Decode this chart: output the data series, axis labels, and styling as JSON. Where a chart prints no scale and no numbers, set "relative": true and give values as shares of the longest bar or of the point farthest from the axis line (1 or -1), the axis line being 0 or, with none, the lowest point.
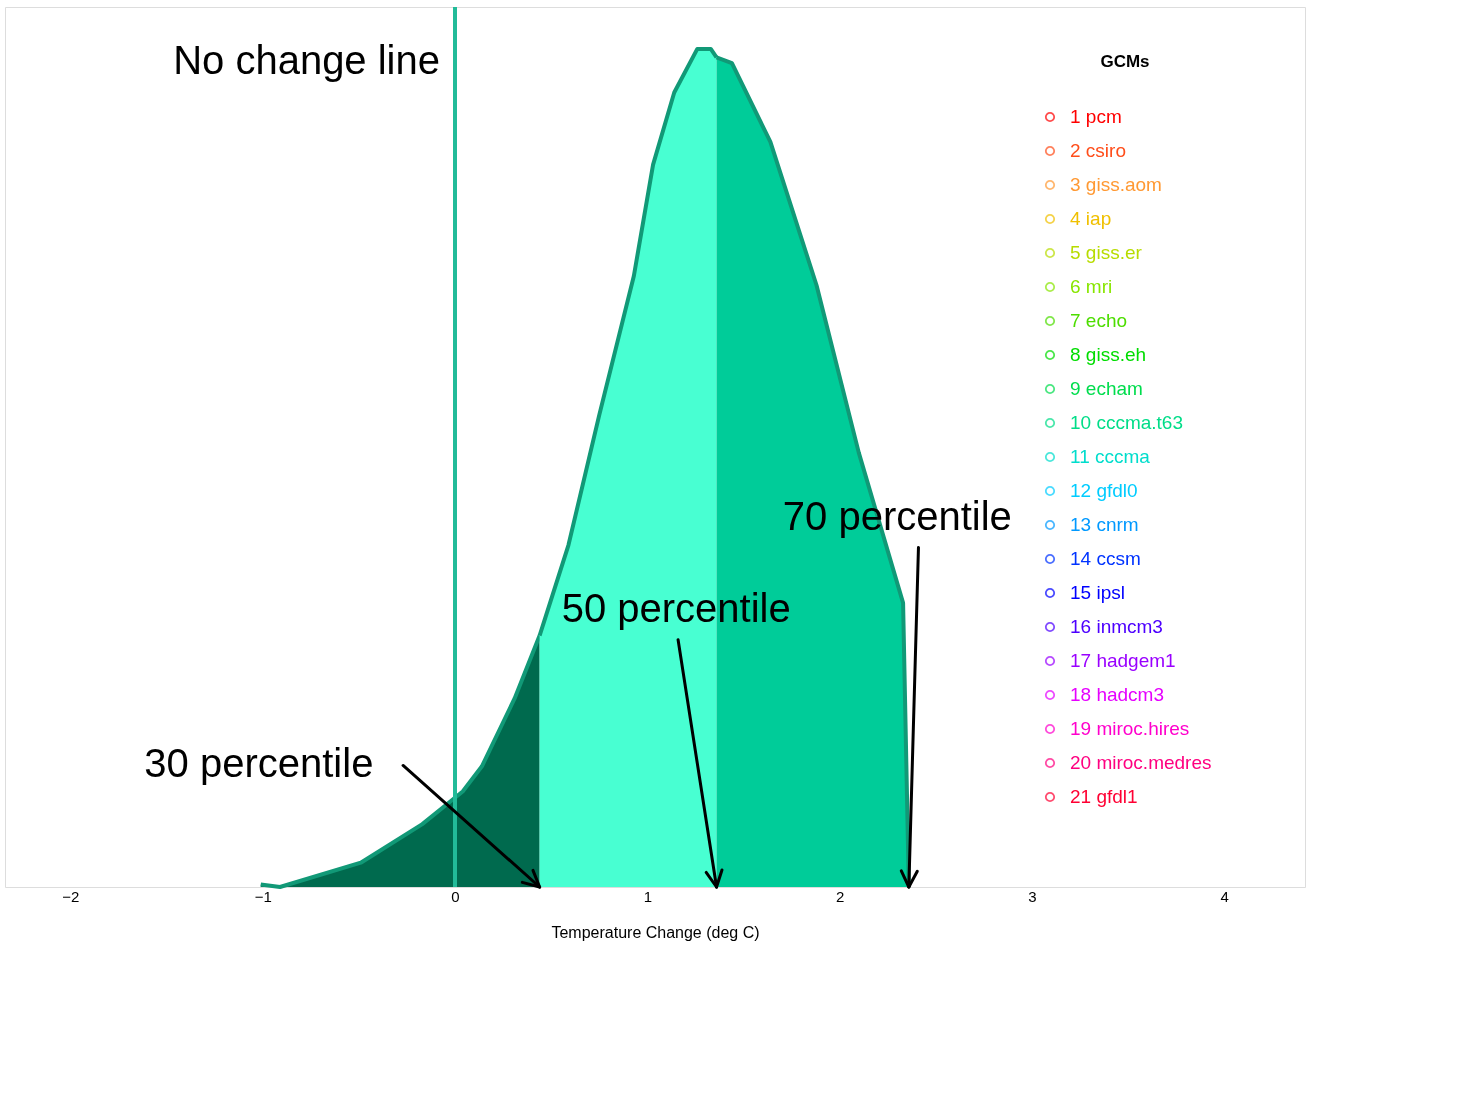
{
  "chart_data": {
    "type": "area",
    "relative": true,
    "xlabel": "Temperature Change (deg C)",
    "legend_title": "GCMs",
    "xlim": [
      -2.34,
      4.42
    ],
    "xticks": [
      -2,
      -1,
      0,
      1,
      2,
      3,
      4
    ],
    "tick_labels": "x",
    "grid": false,
    "legend": "top right",
    "series": [
      {
        "color": "#006a4e",
        "x": [
          -1.01,
          -0.91,
          -0.49,
          -0.17,
          0.04,
          0.14,
          0.31,
          0.44
        ],
        "values": [
          0.003,
          0,
          0.029,
          0.075,
          0.114,
          0.144,
          0.225,
          0.3
        ]
      },
      {
        "color": "#48ffd2",
        "x": [
          0.44,
          0.59,
          0.75,
          0.93,
          1.03,
          1.14,
          1.26,
          1.33,
          1.36
        ],
        "values": [
          0.3,
          0.408,
          0.563,
          0.729,
          0.862,
          0.948,
          1.0,
          1.0,
          0.99
        ]
      },
      {
        "color": "#00cc99",
        "x": [
          1.36,
          1.44,
          1.64,
          1.88,
          2.1,
          2.33,
          2.36
        ],
        "values": [
          0.99,
          0.983,
          0.889,
          0.718,
          0.518,
          0.339,
          0
        ]
      },
      {
        "name": "1 pcm",
        "color": "#ff0000"
      },
      {
        "name": "2 csiro",
        "color": "#ff4d1a"
      },
      {
        "name": "3 giss.aom",
        "color": "#ff9933"
      },
      {
        "name": "4 iap",
        "color": "#f0c000"
      },
      {
        "name": "5 giss.er",
        "color": "#b8dc00"
      },
      {
        "name": "6 mri",
        "color": "#88e600"
      },
      {
        "name": "7 echo",
        "color": "#4ddd00"
      },
      {
        "name": "8 giss.eh",
        "color": "#00dd00"
      },
      {
        "name": "9 echam",
        "color": "#00dd4d"
      },
      {
        "name": "10 cccma.t63",
        "color": "#00dd88"
      },
      {
        "name": "11 cccma",
        "color": "#00ddcc"
      },
      {
        "name": "12 gfdl0",
        "color": "#00ccff"
      },
      {
        "name": "13 cnrm",
        "color": "#0099ff"
      },
      {
        "name": "14 ccsm",
        "color": "#0033ff"
      },
      {
        "name": "15 ipsl",
        "color": "#0000ff"
      },
      {
        "name": "16 inmcm3",
        "color": "#4d00ff"
      },
      {
        "name": "17 hadgem1",
        "color": "#9900ff"
      },
      {
        "name": "18 hadcm3",
        "color": "#e600ff"
      },
      {
        "name": "19 miroc.hires",
        "color": "#ff00cc"
      },
      {
        "name": "20 miroc.medres",
        "color": "#ff0080"
      },
      {
        "name": "21 gfdl1",
        "color": "#ff0033"
      }
    ],
    "ref_lines": [
      {
        "axis": "x",
        "value": 0,
        "label": "No change line",
        "color": "#22bb99"
      }
    ],
    "annotations": [
      {
        "text": "30 percentile",
        "x": 0.44,
        "y": 0
      },
      {
        "text": "50 percentile",
        "x": 1.36,
        "y": 0
      },
      {
        "text": "70 percentile",
        "x": 2.36,
        "y": 0
      }
    ]
  }
}
